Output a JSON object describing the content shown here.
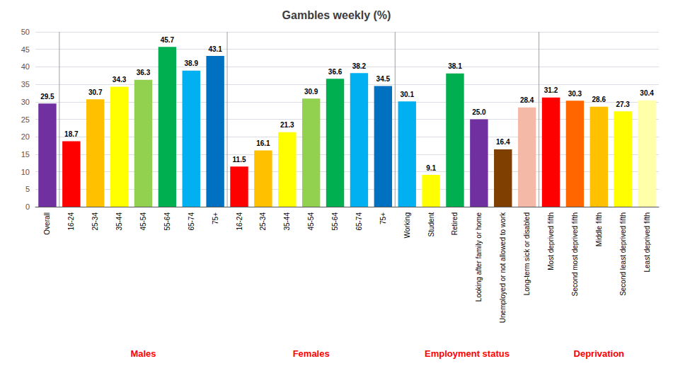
{
  "chart_data": {
    "type": "bar",
    "title": "Gambles weekly (%)",
    "categories": [
      "Overall",
      "16-24",
      "25-34",
      "35-44",
      "45-54",
      "55-64",
      "65-74",
      "75+",
      "16-24",
      "25-34",
      "35-44",
      "45-54",
      "55-64",
      "65-74",
      "75+",
      "Working",
      "Student",
      "Retired",
      "Looking after family or home",
      "Unemployed or not allowed to work",
      "Long-term sick or disabled",
      "Most deprived fifth",
      "Second most deprived fifth",
      "Middle fifth",
      "Second least deprived fifth",
      "Least deprived fifth"
    ],
    "category_groups": [
      null,
      "Males",
      "Males",
      "Males",
      "Males",
      "Males",
      "Males",
      "Males",
      "Females",
      "Females",
      "Females",
      "Females",
      "Females",
      "Females",
      "Females",
      "Employment status",
      "Employment status",
      "Employment status",
      "Employment status",
      "Employment status",
      "Employment status",
      "Deprivation",
      "Deprivation",
      "Deprivation",
      "Deprivation",
      "Deprivation"
    ],
    "annotation_color": "#FF0000",
    "values": [
      29.5,
      18.7,
      30.7,
      34.3,
      36.3,
      45.7,
      38.9,
      43.1,
      11.5,
      16.1,
      21.3,
      30.9,
      36.6,
      38.2,
      34.5,
      30.1,
      9.1,
      38.1,
      25.0,
      16.4,
      28.4,
      31.2,
      30.3,
      28.6,
      27.3,
      30.4
    ],
    "value_labels": [
      "29.5",
      "18.7",
      "30.7",
      "34.3",
      "36.3",
      "45.7",
      "38.9",
      "43.1",
      "11.5",
      "16.1",
      "21.3",
      "30.9",
      "36.6",
      "38.2",
      "34.5",
      "30.1",
      "9.1",
      "38.1",
      "25.0",
      "16.4",
      "28.4",
      "31.2",
      "30.3",
      "28.6",
      "27.3",
      "30.4"
    ],
    "colors": [
      "#7030A0",
      "#FF0000",
      "#FFC000",
      "#FFFF00",
      "#92D050",
      "#00B050",
      "#00B0F0",
      "#0070C0",
      "#FF0000",
      "#FFC000",
      "#FFFF00",
      "#92D050",
      "#00B050",
      "#00B0F0",
      "#0070C0",
      "#00B0F0",
      "#FFFF00",
      "#00B050",
      "#7030A0",
      "#7F3F00",
      "#F4B9A7",
      "#FF0000",
      "#FF6600",
      "#FFC000",
      "#FFFF00",
      "#FFFFAA"
    ],
    "ylim": [
      0,
      50
    ],
    "yticks": [
      0,
      5,
      10,
      15,
      20,
      25,
      30,
      35,
      40,
      45,
      50
    ],
    "grid": true,
    "data_labels": true
  }
}
